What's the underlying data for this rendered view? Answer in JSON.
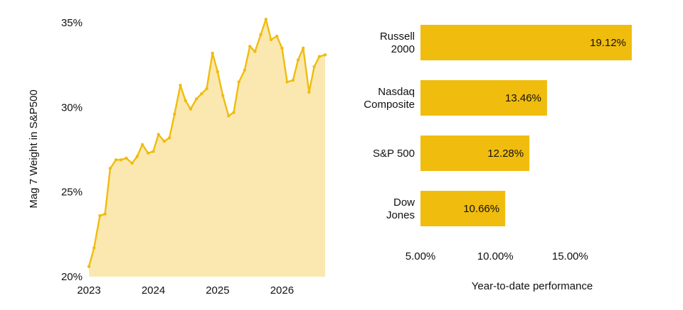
{
  "colors": {
    "accent": "#F0BC0E",
    "area_fill": "#FAE8B0",
    "text": "#111111"
  },
  "chart_data": [
    {
      "type": "area",
      "title": "",
      "xlabel": "",
      "ylabel": "Mag 7 Weight in S&P500",
      "xlim": [
        2023.0,
        2026.67
      ],
      "ylim": [
        20,
        35
      ],
      "xticks": [
        2023,
        2024,
        2025,
        2026
      ],
      "xtick_labels": [
        "2023",
        "2024",
        "2025",
        "2026"
      ],
      "yticks": [
        20,
        25,
        30,
        35
      ],
      "ytick_labels": [
        "20%",
        "25%",
        "30%",
        "35%"
      ],
      "grid": false,
      "series": [
        {
          "x": [
            2023.0,
            2023.08,
            2023.17,
            2023.25,
            2023.33,
            2023.42,
            2023.5,
            2023.58,
            2023.67,
            2023.75,
            2023.83,
            2023.92,
            2024.0,
            2024.08,
            2024.17,
            2024.25,
            2024.33,
            2024.42,
            2024.5,
            2024.58,
            2024.67,
            2024.75,
            2024.83,
            2024.92,
            2025.0,
            2025.08,
            2025.17,
            2025.25,
            2025.33,
            2025.42,
            2025.5,
            2025.58,
            2025.67,
            2025.75,
            2025.83,
            2025.92,
            2026.0,
            2026.08,
            2026.17,
            2026.25,
            2026.33,
            2026.42,
            2026.5,
            2026.58,
            2026.67
          ],
          "y": [
            20.6,
            21.7,
            23.6,
            23.7,
            26.4,
            26.9,
            26.9,
            27.0,
            26.7,
            27.1,
            27.8,
            27.3,
            27.4,
            28.4,
            28.0,
            28.2,
            29.6,
            31.3,
            30.4,
            29.9,
            30.5,
            30.8,
            31.1,
            33.2,
            32.1,
            30.7,
            29.5,
            29.7,
            31.5,
            32.2,
            33.6,
            33.3,
            34.3,
            35.2,
            34.0,
            34.2,
            33.5,
            31.5,
            31.6,
            32.8,
            33.5,
            30.9,
            32.4,
            33.0,
            33.1
          ]
        }
      ]
    },
    {
      "type": "bar",
      "orientation": "horizontal",
      "title": "",
      "xlabel": "Year-to-date performance",
      "ylabel": "",
      "categories": [
        [
          "Russell",
          "2000"
        ],
        [
          "Nasdaq",
          "Composite"
        ],
        [
          "S&P 500"
        ],
        [
          "Dow",
          "Jones"
        ]
      ],
      "values": [
        19.12,
        13.46,
        12.28,
        10.66
      ],
      "value_labels": [
        "19.12%",
        "13.46%",
        "12.28%",
        "10.66%"
      ],
      "xlim": [
        5.0,
        19.12
      ],
      "xticks": [
        5,
        10,
        15
      ],
      "xtick_labels": [
        "5.00%",
        "10.00%",
        "15.00%"
      ],
      "grid": false
    }
  ]
}
